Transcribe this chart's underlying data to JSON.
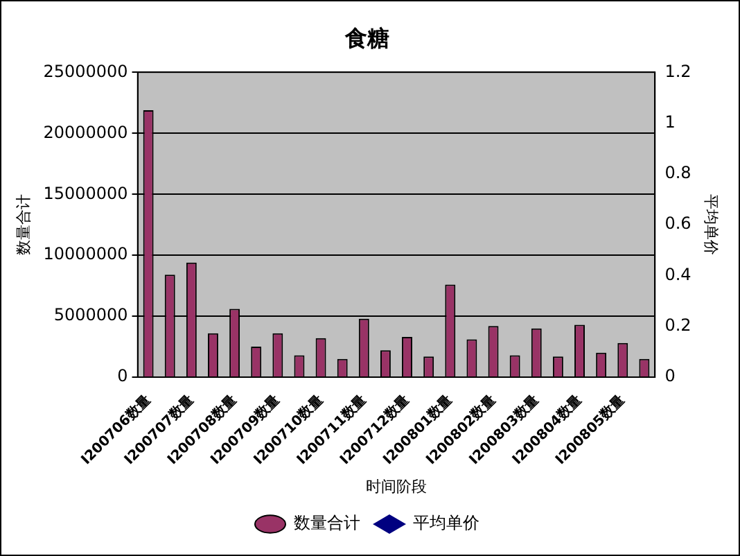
{
  "chart_data": {
    "type": "bar",
    "title": "食糖",
    "xlabel": "时间阶段",
    "ylabel": "数量合计",
    "y2label": "平均单价",
    "categories": [
      "I200706数量",
      null,
      "I200707数量",
      null,
      "I200708数量",
      null,
      "I200709数量",
      null,
      "I200710数量",
      null,
      "I200711数量",
      null,
      "I200712数量",
      null,
      "I200801数量",
      null,
      "I200802数量",
      null,
      "I200803数量",
      null,
      "I200804数量",
      null,
      "I200805数量",
      null
    ],
    "series": [
      {
        "name": "数量合计",
        "color": "#993366",
        "values": [
          21900000,
          8400000,
          9400000,
          3600000,
          5600000,
          2500000,
          3600000,
          1800000,
          3200000,
          1500000,
          4800000,
          2200000,
          3300000,
          1700000,
          7600000,
          3100000,
          4200000,
          1800000,
          4000000,
          1700000,
          4300000,
          2000000,
          2800000,
          1500000
        ]
      },
      {
        "name": "平均单价",
        "type": "line",
        "color": "#000080",
        "marker": "diamond",
        "values": [
          null,
          null,
          null,
          null,
          null,
          null,
          null,
          null,
          null,
          null,
          null,
          null,
          null,
          null,
          null,
          null,
          null,
          null,
          null,
          null,
          null,
          null,
          null,
          null
        ]
      }
    ],
    "ylim": [
      0,
      25000000
    ],
    "yticks": [
      0,
      5000000,
      10000000,
      15000000,
      20000000,
      25000000
    ],
    "y2lim": [
      0,
      1.2
    ],
    "y2ticks": [
      0,
      0.2,
      0.4,
      0.6,
      0.8,
      1,
      1.2
    ],
    "grid": "y",
    "legend": "bottom"
  }
}
